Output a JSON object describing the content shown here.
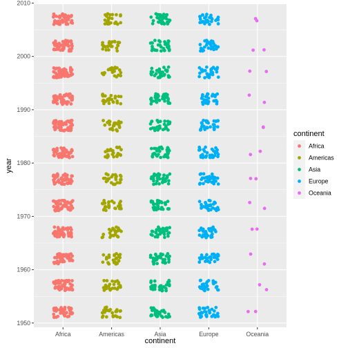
{
  "chart_data": {
    "type": "scatter",
    "subtype": "jitter",
    "xlabel": "continent",
    "ylabel": "year",
    "categories": [
      "Africa",
      "Americas",
      "Asia",
      "Europe",
      "Oceania"
    ],
    "years": [
      1952,
      1957,
      1962,
      1967,
      1972,
      1977,
      1982,
      1987,
      1992,
      1997,
      2002,
      2007
    ],
    "ylim": [
      1949.2,
      2009.8
    ],
    "y_ticks": [
      1950,
      1960,
      1970,
      1980,
      1990,
      2000,
      2010
    ],
    "point_counts_per_year": [
      52,
      25,
      33,
      30,
      2
    ],
    "jitter": {
      "x_width": 0.4,
      "y_height": 2.0
    },
    "grid": true,
    "legend": {
      "title": "continent",
      "position": "right",
      "entries": [
        "Africa",
        "Americas",
        "Asia",
        "Europe",
        "Oceania"
      ]
    },
    "colors": {
      "Africa": "#F8766D",
      "Americas": "#A3A500",
      "Asia": "#00BF7D",
      "Europe": "#00B0F6",
      "Oceania": "#E76BF3"
    },
    "panel_background": "#EBEBEB",
    "grid_color": "#FFFFFF"
  }
}
